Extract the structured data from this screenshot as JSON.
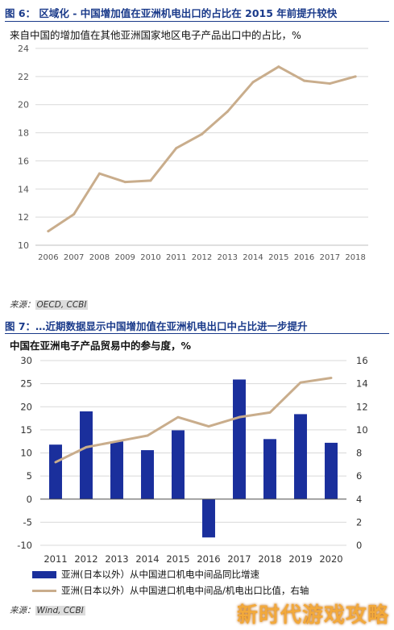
{
  "fig6": {
    "title": "图 6： 区域化 - 中国增加值在亚洲机电出口的占比在 2015 年前提升较快",
    "subtitle": "来自中国的增加值在其他亚洲国家地区电子产品出口中的占比，%",
    "source_label": "来源：",
    "source_value": "OECD, CCBI"
  },
  "fig7": {
    "title": "图 7：…近期数据显示中国增加值在亚洲机电出口中占比进一步提升",
    "subtitle": "中国在亚洲电子产品贸易中的参与度，%",
    "legend_bar": "亚洲(日本以外）从中国进口机电中间品同比增速",
    "legend_line": "亚洲(日本以外）从中国进口机电中间品/机电出口比值，右轴",
    "source_label": "来源：",
    "source_value": "Wind, CCBI"
  },
  "watermark": "新时代游戏攻略",
  "colors": {
    "title": "#1a3a8a",
    "bar": "#1a2f9c",
    "line": "#c9ad8c",
    "grid": "#d9d9d9"
  },
  "chart_data": [
    {
      "type": "line",
      "x": [
        "2006",
        "2007",
        "2008",
        "2009",
        "2010",
        "2011",
        "2012",
        "2013",
        "2014",
        "2015",
        "2016",
        "2017",
        "2018"
      ],
      "series": [
        {
          "values": [
            11.0,
            12.2,
            15.1,
            14.5,
            14.6,
            16.9,
            17.9,
            19.5,
            21.6,
            22.7,
            21.7,
            21.5,
            22.0
          ]
        }
      ],
      "ylim": [
        10,
        24
      ],
      "yticks": [
        10,
        12,
        14,
        16,
        18,
        20,
        22,
        24
      ],
      "grid": true
    },
    {
      "type": "bar+line",
      "x": [
        "2011",
        "2012",
        "2013",
        "2014",
        "2015",
        "2016",
        "2017",
        "2018",
        "2019",
        "2020"
      ],
      "bars": {
        "axis": "left",
        "values": [
          11.8,
          19.0,
          12.5,
          10.6,
          14.9,
          -8.3,
          25.9,
          13.0,
          18.4,
          12.2
        ]
      },
      "line": {
        "axis": "right",
        "values": [
          7.2,
          8.5,
          9.0,
          9.5,
          11.1,
          10.3,
          11.1,
          11.5,
          14.1,
          14.5
        ]
      },
      "ylim_left": [
        -10,
        30
      ],
      "yticks_left": [
        -10,
        -5,
        0,
        5,
        10,
        15,
        20,
        25,
        30
      ],
      "ylim_right": [
        0,
        16
      ],
      "yticks_right": [
        0,
        2,
        4,
        6,
        8,
        10,
        12,
        14,
        16
      ],
      "grid": true
    }
  ]
}
